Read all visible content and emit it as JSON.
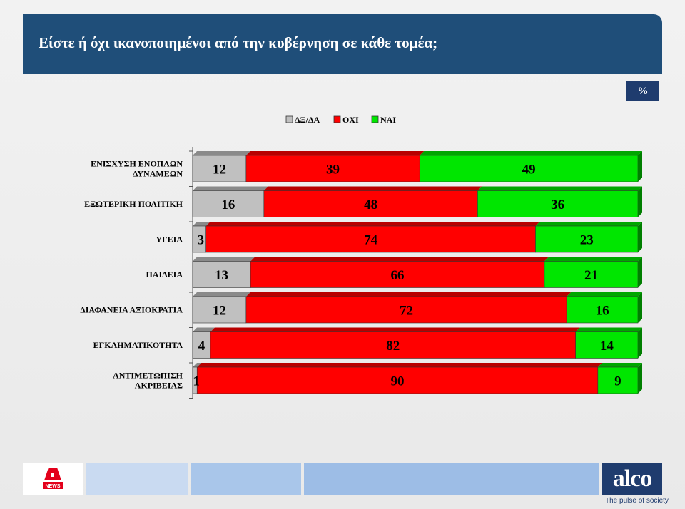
{
  "header": {
    "title": "Είστε ή όχι ικανοποιημένοι από την κυβέρνηση σε κάθε τομέα;"
  },
  "unit_badge": "%",
  "footer": {
    "slogan": "The pulse of society",
    "brand": "alco",
    "news_logo_text": "NEWS"
  },
  "colors": {
    "dk": "#c0c0c0",
    "no": "#ff0000",
    "yes": "#00e600",
    "header": "#1f4e79"
  },
  "chart_data": {
    "type": "bar",
    "orientation": "horizontal",
    "stacked": true,
    "title": "",
    "legend_position": "top",
    "categories": [
      "ΕΝΙΣΧΥΣΗ ΕΝΟΠΛΩΝ ΔΥΝΑΜΕΩΝ",
      "ΕΞΩΤΕΡΙΚΗ ΠΟΛΙΤΙΚΗ",
      "ΥΓΕΙΑ",
      "ΠΑΙΔΕΙΑ",
      "ΔΙΑΦΑΝΕΙΑ ΑΞΙΟΚΡΑΤΙΑ",
      "ΕΓΚΛΗΜΑΤΙΚΟΤΗΤΑ",
      "ΑΝΤΙΜΕΤΩΠΙΣΗ ΑΚΡΙΒΕΙΑΣ"
    ],
    "category_lines": [
      [
        "ΕΝΙΣΧΥΣΗ ΕΝΟΠΛΩΝ",
        "ΔΥΝΑΜΕΩΝ"
      ],
      [
        "ΕΞΩΤΕΡΙΚΗ ΠΟΛΙΤΙΚΗ"
      ],
      [
        "ΥΓΕΙΑ"
      ],
      [
        "ΠΑΙΔΕΙΑ"
      ],
      [
        "ΔΙΑΦΑΝΕΙΑ ΑΞΙΟΚΡΑΤΙΑ"
      ],
      [
        "ΕΓΚΛΗΜΑΤΙΚΟΤΗΤΑ"
      ],
      [
        "ΑΝΤΙΜΕΤΩΠΙΣΗ",
        "ΑΚΡΙΒΕΙΑΣ"
      ]
    ],
    "series": [
      {
        "name": "ΔΞ/ΔΑ",
        "color": "#c0c0c0",
        "values": [
          12,
          16,
          3,
          13,
          12,
          4,
          1
        ]
      },
      {
        "name": "ΟΧΙ",
        "color": "#ff0000",
        "values": [
          39,
          48,
          74,
          66,
          72,
          82,
          90
        ]
      },
      {
        "name": "ΝΑΙ",
        "color": "#00e600",
        "values": [
          49,
          36,
          23,
          21,
          16,
          14,
          9
        ]
      }
    ],
    "xlim": [
      0,
      100
    ]
  }
}
